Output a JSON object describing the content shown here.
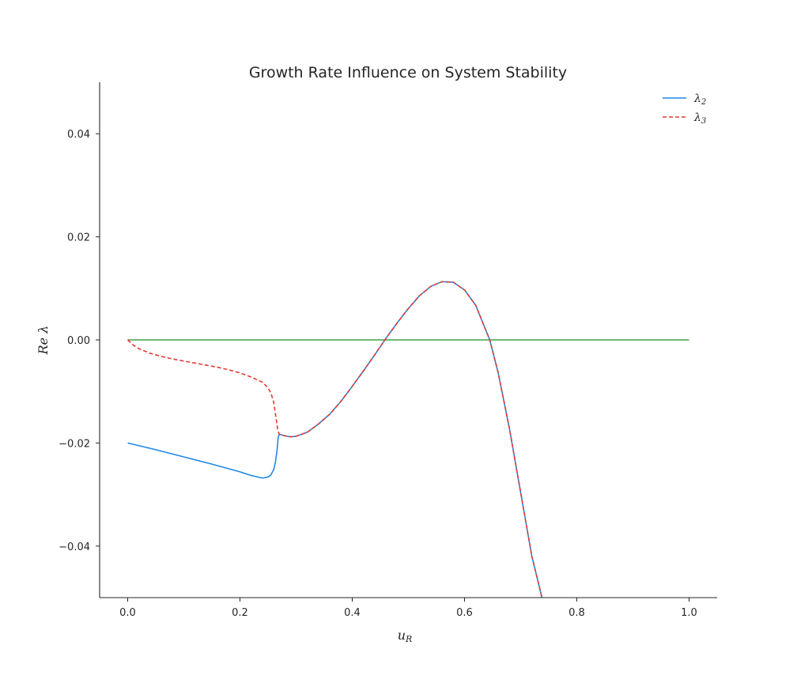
{
  "chart_data": {
    "type": "line",
    "title": "Growth Rate Influence on System Stability",
    "xlabel": "u",
    "xlabel_sub": "R",
    "ylabel": "Re  λ",
    "xlim": [
      -0.05,
      1.05
    ],
    "ylim": [
      -0.05,
      0.05
    ],
    "xticks": [
      "0.0",
      "0.2",
      "0.4",
      "0.6",
      "0.8",
      "1.0"
    ],
    "yticks": [
      "−0.04",
      "−0.02",
      "0.00",
      "0.02",
      "0.04"
    ],
    "grid": false,
    "legend": "top-right",
    "series": [
      {
        "name": "λ",
        "name_sub": "2",
        "color": "#1f88e5",
        "style": "solid",
        "x": [
          0.0,
          0.05,
          0.1,
          0.15,
          0.2,
          0.22,
          0.24,
          0.25,
          0.255,
          0.26,
          0.263,
          0.266,
          0.268,
          0.27,
          0.28,
          0.29,
          0.3,
          0.32,
          0.34,
          0.36,
          0.38,
          0.4,
          0.42,
          0.44,
          0.46,
          0.48,
          0.5,
          0.52,
          0.54,
          0.56,
          0.58,
          0.6,
          0.62,
          0.645,
          0.66,
          0.68,
          0.7,
          0.72,
          0.738
        ],
        "y": [
          -0.02,
          -0.0213,
          -0.0227,
          -0.0241,
          -0.0256,
          -0.0263,
          -0.0268,
          -0.0266,
          -0.0262,
          -0.0252,
          -0.0238,
          -0.0215,
          -0.019,
          -0.0183,
          -0.0186,
          -0.0188,
          -0.0187,
          -0.0179,
          -0.0163,
          -0.0144,
          -0.0119,
          -0.009,
          -0.006,
          -0.0029,
          0.0003,
          0.0033,
          0.0061,
          0.0086,
          0.0104,
          0.0113,
          0.0112,
          0.0097,
          0.0067,
          0.0,
          -0.0064,
          -0.0172,
          -0.0296,
          -0.042,
          -0.05
        ]
      },
      {
        "name": "λ",
        "name_sub": "3",
        "color": "#e53935",
        "style": "dashed",
        "x": [
          0.0,
          0.01,
          0.02,
          0.04,
          0.06,
          0.08,
          0.1,
          0.12,
          0.14,
          0.16,
          0.18,
          0.2,
          0.22,
          0.24,
          0.25,
          0.255,
          0.26,
          0.263,
          0.266,
          0.268,
          0.27,
          0.28,
          0.29,
          0.3,
          0.32,
          0.34,
          0.36,
          0.38,
          0.4,
          0.42,
          0.44,
          0.46,
          0.48,
          0.5,
          0.52,
          0.54,
          0.56,
          0.58,
          0.6,
          0.62,
          0.645,
          0.66,
          0.68,
          0.7,
          0.72,
          0.738
        ],
        "y": [
          0.0,
          -0.001,
          -0.0017,
          -0.0026,
          -0.0032,
          -0.0037,
          -0.0041,
          -0.0045,
          -0.0049,
          -0.0053,
          -0.0058,
          -0.0064,
          -0.0072,
          -0.0082,
          -0.0093,
          -0.0103,
          -0.012,
          -0.0142,
          -0.0165,
          -0.0178,
          -0.0183,
          -0.0186,
          -0.0188,
          -0.0187,
          -0.0179,
          -0.0163,
          -0.0144,
          -0.0119,
          -0.009,
          -0.006,
          -0.0029,
          0.0003,
          0.0033,
          0.0061,
          0.0086,
          0.0104,
          0.0113,
          0.0112,
          0.0097,
          0.0067,
          0.0,
          -0.0064,
          -0.0172,
          -0.0296,
          -0.042,
          -0.05
        ]
      },
      {
        "name": "",
        "color": "#43a047",
        "style": "solid",
        "x": [
          0.0,
          1.0
        ],
        "y": [
          0.0,
          0.0
        ]
      }
    ]
  }
}
